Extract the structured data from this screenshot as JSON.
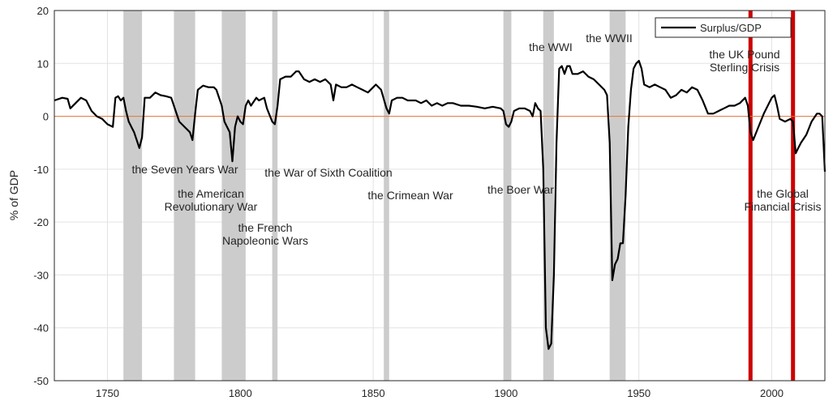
{
  "chart_data": {
    "type": "line",
    "ylabel": "% of GDP",
    "xlim": [
      1730,
      2020
    ],
    "ylim": [
      -50,
      20
    ],
    "xticks": [
      1750,
      1800,
      1850,
      1900,
      1950,
      2000
    ],
    "yticks": [
      20,
      10,
      0,
      -10,
      -20,
      -30,
      -40,
      -50
    ],
    "grid": true,
    "legend": "upper right",
    "zero_line_color": "#e8743b",
    "x": [
      1730,
      1733,
      1735,
      1736,
      1738,
      1740,
      1742,
      1744,
      1746,
      1748,
      1750,
      1752,
      1753,
      1754,
      1755,
      1756,
      1757,
      1758,
      1760,
      1762,
      1763,
      1764,
      1766,
      1768,
      1770,
      1772,
      1774,
      1775,
      1777,
      1779,
      1781,
      1782,
      1783,
      1784,
      1786,
      1788,
      1790,
      1791,
      1793,
      1794,
      1796,
      1797,
      1798,
      1799,
      1800,
      1801,
      1802,
      1803,
      1804,
      1806,
      1807,
      1809,
      1810,
      1812,
      1813,
      1814,
      1815,
      1817,
      1819,
      1821,
      1822,
      1824,
      1826,
      1828,
      1830,
      1832,
      1834,
      1835,
      1836,
      1838,
      1840,
      1842,
      1844,
      1846,
      1848,
      1850,
      1851,
      1853,
      1855,
      1856,
      1857,
      1859,
      1861,
      1863,
      1866,
      1868,
      1870,
      1872,
      1874,
      1876,
      1878,
      1880,
      1883,
      1886,
      1889,
      1892,
      1895,
      1898,
      1899,
      1900,
      1901,
      1902,
      1903,
      1905,
      1907,
      1909,
      1910,
      1911,
      1912,
      1913,
      1914,
      1915,
      1916,
      1917,
      1918,
      1919,
      1920,
      1921,
      1922,
      1923,
      1924,
      1925,
      1927,
      1929,
      1931,
      1933,
      1935,
      1937,
      1938,
      1939,
      1940,
      1941,
      1942,
      1943,
      1944,
      1945,
      1946,
      1947,
      1948,
      1949,
      1950,
      1951,
      1952,
      1954,
      1956,
      1958,
      1960,
      1962,
      1964,
      1966,
      1968,
      1970,
      1972,
      1974,
      1976,
      1978,
      1980,
      1982,
      1984,
      1986,
      1988,
      1990,
      1991,
      1992,
      1993,
      1995,
      1997,
      1999,
      2000,
      2001,
      2002,
      2003,
      2005,
      2007,
      2008,
      2009,
      2010,
      2011,
      2013,
      2015,
      2017,
      2018,
      2019,
      2020
    ],
    "series": [
      {
        "name": "Surplus/GDP",
        "color": "#000000",
        "values": [
          3,
          3.5,
          3.3,
          1.5,
          2.5,
          3.5,
          3,
          1,
          0,
          -0.5,
          -1.5,
          -2,
          3.5,
          3.8,
          3,
          3.5,
          1,
          -1,
          -3,
          -6,
          -4,
          3.5,
          3.5,
          4.5,
          4,
          3.8,
          3.5,
          2,
          -1,
          -2,
          -3,
          -4.5,
          0.5,
          5,
          5.8,
          5.5,
          5.5,
          5,
          2,
          -1,
          -3,
          -8.5,
          -2,
          0,
          -1,
          -1.5,
          2,
          3,
          2,
          3.5,
          3,
          3.5,
          1.5,
          -1,
          -1.5,
          2,
          7,
          7.5,
          7.5,
          8.5,
          8.5,
          7,
          6.5,
          7,
          6.5,
          7,
          6,
          3,
          6,
          5.5,
          5.5,
          6,
          5.5,
          5,
          4.5,
          5.5,
          6,
          5,
          1.5,
          0.5,
          3,
          3.5,
          3.5,
          3,
          3,
          2.5,
          3,
          2,
          2.5,
          2,
          2.5,
          2.5,
          2,
          2,
          1.8,
          1.5,
          1.8,
          1.5,
          1,
          -1.5,
          -2,
          -1,
          1,
          1.5,
          1.5,
          1,
          0,
          2.5,
          1.5,
          1,
          -10,
          -40,
          -44,
          -43,
          -30,
          -5,
          9,
          9.5,
          8,
          9.5,
          9.5,
          8,
          8,
          8.5,
          7.5,
          7,
          6,
          5,
          4,
          -5,
          -31,
          -28,
          -27,
          -24,
          -24,
          -15,
          -2,
          5,
          9,
          10,
          10.5,
          9,
          6,
          5.5,
          6,
          5.5,
          5,
          3.5,
          4,
          5,
          4.5,
          5.5,
          5,
          3,
          0.5,
          0.5,
          1,
          1.5,
          2,
          2,
          2.5,
          3.5,
          2,
          -3,
          -4.5,
          -2,
          0.5,
          2.5,
          3.5,
          4,
          2,
          -0.5,
          -1,
          -0.5,
          -1,
          -7,
          -6,
          -5,
          -3.5,
          -1,
          0.5,
          0.5,
          0,
          -10.5
        ]
      }
    ],
    "shaded": [
      {
        "start": 1756,
        "end": 1763
      },
      {
        "start": 1775,
        "end": 1783
      },
      {
        "start": 1793,
        "end": 1802
      },
      {
        "start": 1812,
        "end": 1814
      },
      {
        "start": 1854,
        "end": 1856
      },
      {
        "start": 1899,
        "end": 1902
      },
      {
        "start": 1914,
        "end": 1918
      },
      {
        "start": 1939,
        "end": 1945
      }
    ],
    "shade_color": "#cccccc",
    "markers": [
      {
        "x": 1992
      },
      {
        "x": 2008
      }
    ],
    "marker_color": "#cc0000",
    "annotations": [
      {
        "lines": [
          "the Seven Years War"
        ]
      },
      {
        "lines": [
          "the American",
          "Revolutionary War"
        ]
      },
      {
        "lines": [
          "the French",
          "Napoleonic Wars"
        ]
      },
      {
        "lines": [
          "the War of Sixth Coalition"
        ]
      },
      {
        "lines": [
          "the Crimean War"
        ]
      },
      {
        "lines": [
          "the Boer War"
        ]
      },
      {
        "lines": [
          "the WWI"
        ]
      },
      {
        "lines": [
          "the WWII"
        ]
      },
      {
        "lines": [
          "the UK Pound",
          "Sterling Crisis"
        ]
      },
      {
        "lines": [
          "the Global",
          "Financial Crisis"
        ]
      }
    ]
  }
}
